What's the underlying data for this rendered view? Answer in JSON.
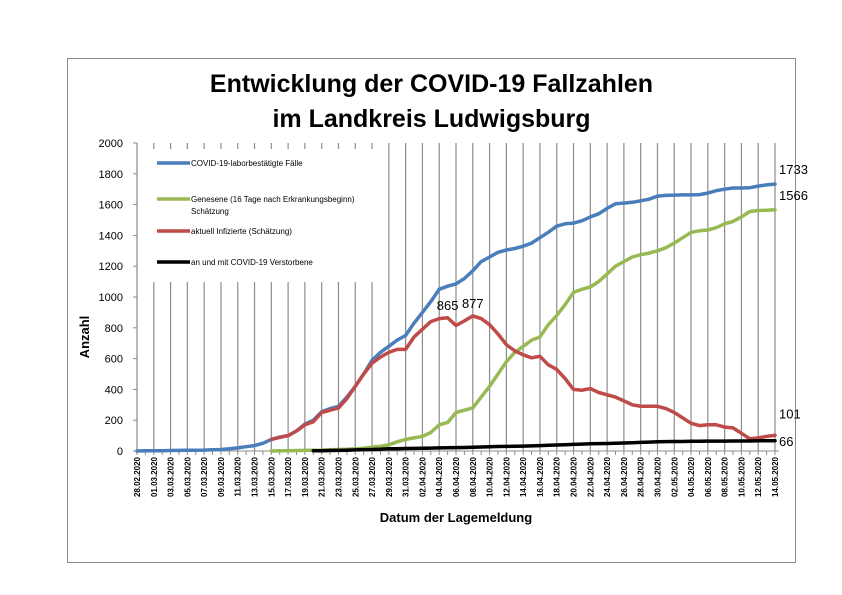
{
  "chart_data": {
    "type": "line",
    "title_line1": "Entwicklung der COVID-19 Fallzahlen",
    "title_line2": "im Landkreis Ludwigsburg",
    "xlabel": "Datum der Lagemeldung",
    "ylabel": "Anzahl",
    "ylim": [
      0,
      2000
    ],
    "yticks": [
      "0",
      "200",
      "400",
      "600",
      "800",
      "1000",
      "1200",
      "1400",
      "1600",
      "1800",
      "2000"
    ],
    "x_step_days": 1,
    "x_tick_every": 2,
    "x_tick_labels": [
      "28.02.2020",
      "01.03.2020",
      "03.03.2020",
      "05.03.2020",
      "07.03.2020",
      "09.03.2020",
      "11.03.2020",
      "13.03.2020",
      "15.03.2020",
      "17.03.2020",
      "19.03.2020",
      "21.03.2020",
      "23.03.2020",
      "25.03.2020",
      "27.03.2020",
      "29.03.2020",
      "31.03.2020",
      "02.04.2020",
      "04.04.2020",
      "06.04.2020",
      "08.04.2020",
      "10.04.2020",
      "12.04.2020",
      "14.04.2020",
      "16.04.2020",
      "18.04.2020",
      "20.04.2020",
      "22.04.2020",
      "24.04.2020",
      "26.04.2020",
      "28.04.2020",
      "30.04.2020",
      "02.05.2020",
      "04.05.2020",
      "06.05.2020",
      "08.05.2020",
      "10.05.2020",
      "12.05.2020",
      "14.05.2020"
    ],
    "grid": "vertical",
    "legend_position": "top-left",
    "series": [
      {
        "name": "COVID-19-laborbestätigte Fälle",
        "color": "#4a7ebb",
        "values": [
          0,
          1,
          1,
          2,
          3,
          4,
          5,
          5,
          6,
          8,
          10,
          14,
          20,
          28,
          35,
          50,
          75,
          90,
          100,
          130,
          175,
          200,
          255,
          275,
          290,
          350,
          420,
          500,
          590,
          640,
          680,
          720,
          750,
          830,
          900,
          970,
          1050,
          1070,
          1085,
          1120,
          1170,
          1230,
          1260,
          1290,
          1305,
          1315,
          1330,
          1350,
          1385,
          1420,
          1460,
          1475,
          1480,
          1495,
          1520,
          1540,
          1575,
          1605,
          1610,
          1615,
          1625,
          1635,
          1655,
          1660,
          1662,
          1663,
          1663,
          1665,
          1675,
          1690,
          1700,
          1708,
          1708,
          1710,
          1720,
          1728,
          1733
        ]
      },
      {
        "name": "Genesene (16 Tage nach Erkrankungsbeginn) Schätzung",
        "color": "#98b954",
        "values": [
          null,
          null,
          null,
          null,
          null,
          null,
          null,
          null,
          null,
          null,
          null,
          null,
          null,
          null,
          null,
          null,
          0,
          1,
          2,
          3,
          4,
          5,
          6,
          8,
          10,
          12,
          15,
          18,
          25,
          30,
          40,
          60,
          75,
          85,
          95,
          120,
          170,
          185,
          250,
          265,
          280,
          350,
          420,
          500,
          580,
          640,
          680,
          720,
          740,
          820,
          880,
          950,
          1030,
          1050,
          1065,
          1100,
          1150,
          1200,
          1230,
          1260,
          1275,
          1285,
          1300,
          1320,
          1350,
          1385,
          1420,
          1430,
          1435,
          1450,
          1475,
          1490,
          1520,
          1555,
          1562,
          1563,
          1566
        ]
      },
      {
        "name": "aktuell Infizierte (Schätzung)",
        "color": "#be4b48",
        "values": [
          null,
          null,
          null,
          null,
          null,
          null,
          null,
          null,
          null,
          null,
          null,
          null,
          null,
          null,
          null,
          null,
          75,
          88,
          100,
          130,
          170,
          190,
          250,
          265,
          280,
          340,
          420,
          500,
          570,
          610,
          640,
          660,
          660,
          740,
          790,
          840,
          860,
          865,
          815,
          845,
          877,
          860,
          820,
          760,
          690,
          650,
          625,
          605,
          615,
          560,
          530,
          470,
          400,
          395,
          405,
          380,
          365,
          350,
          325,
          300,
          290,
          290,
          290,
          275,
          250,
          215,
          180,
          165,
          170,
          170,
          155,
          150,
          115,
          80,
          85,
          95,
          101
        ]
      },
      {
        "name": "an und mit COVID-19 Verstorbene",
        "color": "#000000",
        "values": [
          null,
          null,
          null,
          null,
          null,
          null,
          null,
          null,
          null,
          null,
          null,
          null,
          null,
          null,
          null,
          null,
          null,
          null,
          null,
          null,
          null,
          2,
          2,
          3,
          4,
          5,
          7,
          9,
          10,
          12,
          14,
          15,
          16,
          17,
          18,
          19,
          20,
          21,
          22,
          23,
          24,
          26,
          28,
          29,
          30,
          31,
          32,
          33,
          35,
          37,
          39,
          41,
          43,
          45,
          47,
          48,
          49,
          50,
          52,
          54,
          56,
          58,
          60,
          61,
          62,
          62,
          63,
          63,
          64,
          64,
          64,
          65,
          65,
          65,
          66,
          66,
          66
        ]
      }
    ],
    "data_labels": [
      {
        "series": 2,
        "index": 37,
        "text": "865"
      },
      {
        "series": 2,
        "index": 40,
        "text": "877"
      },
      {
        "series": 0,
        "index": 76,
        "text": "1733"
      },
      {
        "series": 1,
        "index": 76,
        "text": "1566"
      },
      {
        "series": 2,
        "index": 76,
        "text": "101"
      },
      {
        "series": 3,
        "index": 76,
        "text": "66"
      }
    ]
  }
}
